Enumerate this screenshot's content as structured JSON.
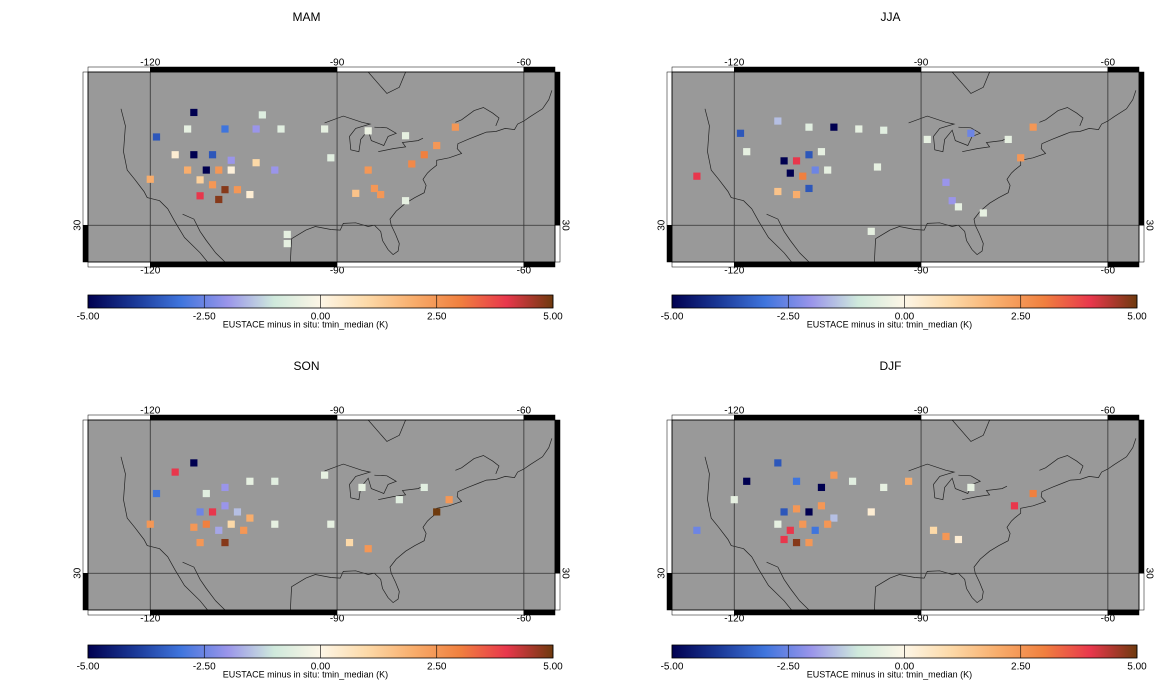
{
  "chart_data": [
    {
      "type": "map",
      "title": "MAM",
      "xlim": [
        -130,
        -55
      ],
      "ylim": [
        24,
        55
      ],
      "xticks": [
        -120,
        -90,
        -60
      ],
      "yticks": [
        30
      ],
      "x": [
        -113,
        -119,
        -114,
        -116,
        -108,
        -102,
        -103,
        -99,
        -92,
        -85,
        -79,
        -71,
        -74,
        -76,
        -78,
        -113,
        -110,
        -107,
        -114,
        -111,
        -109,
        -107,
        -112,
        -110,
        -108,
        -106,
        -104,
        -112,
        -109,
        -103,
        -100,
        -120,
        -98,
        -91,
        -85,
        -84,
        -87,
        -83,
        -98,
        -79
      ],
      "y": [
        48.4,
        44.4,
        45.7,
        41.5,
        45.7,
        48,
        45.7,
        45.7,
        45.7,
        45.4,
        44.6,
        46,
        43,
        41.5,
        40,
        41.5,
        41.5,
        40.6,
        39,
        39,
        39,
        39,
        37.4,
        36.6,
        35.8,
        35.8,
        35,
        34.8,
        34.2,
        40.2,
        39,
        37.5,
        27,
        41,
        39,
        36,
        35.2,
        35,
        28.5,
        34
      ],
      "values": [
        -5,
        -3.5,
        -0.5,
        0.3,
        -3,
        -0.7,
        -2,
        -0.6,
        -0.5,
        -0.4,
        -0.5,
        2.5,
        2.5,
        3,
        2.8,
        -5,
        -3.5,
        -2,
        2,
        -5,
        2.5,
        0.2,
        1.2,
        2.5,
        4.8,
        2.5,
        0.3,
        4,
        4.8,
        1,
        -2,
        2,
        -0.5,
        -0.6,
        2.5,
        2.5,
        1.5,
        2.5,
        -0.5,
        -0.5
      ],
      "colorbar": {
        "label": "EUSTACE minus in situ: tmin_median (K)",
        "lim": [
          -5,
          5
        ],
        "ticks": [
          {
            "value": -5,
            "label": "-5.00"
          },
          {
            "value": -2.5,
            "label": "-2.50"
          },
          {
            "value": 0,
            "label": "0.00"
          },
          {
            "value": 2.5,
            "label": "2.50"
          },
          {
            "value": 5,
            "label": "5.00"
          }
        ],
        "colors": [
          "#000050",
          "#1a3896",
          "#3f75dd",
          "#9a95ea",
          "#cfe9dc",
          "#fdf6e6",
          "#fcd9a8",
          "#f8ad6c",
          "#f0803f",
          "#e8374c",
          "#6e3a0e"
        ]
      }
    },
    {
      "type": "map",
      "title": "JJA",
      "xlim": [
        -130,
        -55
      ],
      "ylim": [
        24,
        55
      ],
      "xticks": [
        -120,
        -90,
        -60
      ],
      "yticks": [
        30
      ],
      "x": [
        -113,
        -119,
        -118,
        -108,
        -104,
        -100,
        -96,
        -89,
        -82,
        -76,
        -72,
        -74,
        -112,
        -110,
        -108,
        -106,
        -111,
        -109,
        -107,
        -105,
        -113,
        -110,
        -108,
        -126,
        -97,
        -86,
        -85,
        -84,
        -80,
        -98
      ],
      "y": [
        47,
        45,
        42,
        46,
        46,
        45.7,
        45.5,
        44,
        45,
        44,
        46,
        41,
        40.5,
        40.5,
        41.5,
        42,
        38.5,
        38,
        39,
        39,
        35.5,
        35,
        36,
        38,
        39.5,
        37,
        34,
        33,
        32,
        29
      ],
      "values": [
        -1.5,
        -3.5,
        -0.5,
        -0.6,
        -5,
        -0.5,
        -0.6,
        -0.5,
        -2.5,
        -0.5,
        2.5,
        2.5,
        -5,
        4,
        -3.5,
        -0.5,
        -5,
        3,
        -2.5,
        -0.5,
        1.5,
        2,
        -3.5,
        4,
        -0.5,
        -2,
        -2,
        -0.5,
        -0.5,
        -0.5
      ],
      "colorbar": {
        "label": "EUSTACE minus in situ: tmin_median (K)",
        "lim": [
          -5,
          5
        ],
        "ticks": [
          {
            "value": -5,
            "label": "-5.00"
          },
          {
            "value": -2.5,
            "label": "-2.50"
          },
          {
            "value": 0,
            "label": "0.00"
          },
          {
            "value": 2.5,
            "label": "2.50"
          },
          {
            "value": 5,
            "label": "5.00"
          }
        ],
        "colors": [
          "#000050",
          "#1a3896",
          "#3f75dd",
          "#9a95ea",
          "#cfe9dc",
          "#fdf6e6",
          "#fcd9a8",
          "#f8ad6c",
          "#f0803f",
          "#e8374c",
          "#6e3a0e"
        ]
      }
    },
    {
      "type": "map",
      "title": "SON",
      "xlim": [
        -130,
        -55
      ],
      "ylim": [
        24,
        55
      ],
      "xticks": [
        -120,
        -90,
        -60
      ],
      "yticks": [
        30
      ],
      "x": [
        -113,
        -116,
        -119,
        -111,
        -108,
        -104,
        -100,
        -92,
        -86,
        -80,
        -74,
        -72,
        -76,
        -112,
        -110,
        -108,
        -106,
        -104,
        -113,
        -111,
        -109,
        -107,
        -105,
        -112,
        -108,
        -120,
        -100,
        -91,
        -88,
        -85
      ],
      "y": [
        48,
        46.5,
        43,
        43,
        44,
        45,
        45,
        46,
        44,
        42,
        40,
        42,
        44,
        40,
        40,
        41,
        40,
        39,
        37.5,
        38,
        37,
        38,
        37,
        35,
        35,
        38,
        38,
        38,
        35,
        34
      ],
      "values": [
        -5,
        4,
        -3,
        -0.6,
        -2,
        -0.5,
        -0.6,
        -0.5,
        -0.5,
        -0.6,
        5,
        2.5,
        -0.6,
        -2.5,
        4,
        -2,
        -1.5,
        2,
        2.5,
        3,
        -1.8,
        1,
        2.5,
        2.5,
        4.8,
        2.5,
        -0.5,
        -0.5,
        1,
        2.5
      ],
      "colorbar": {
        "label": "EUSTACE minus in situ: tmin_median (K)",
        "lim": [
          -5,
          5
        ],
        "ticks": [
          {
            "value": -5,
            "label": "-5.00"
          },
          {
            "value": -2.5,
            "label": "-2.50"
          },
          {
            "value": 0,
            "label": "0.00"
          },
          {
            "value": 2.5,
            "label": "2.50"
          },
          {
            "value": 5,
            "label": "5.00"
          }
        ],
        "colors": [
          "#000050",
          "#1a3896",
          "#3f75dd",
          "#9a95ea",
          "#cfe9dc",
          "#fdf6e6",
          "#fcd9a8",
          "#f8ad6c",
          "#f0803f",
          "#e8374c",
          "#6e3a0e"
        ]
      }
    },
    {
      "type": "map",
      "title": "DJF",
      "xlim": [
        -130,
        -55
      ],
      "ylim": [
        24,
        55
      ],
      "xticks": [
        -120,
        -90,
        -60
      ],
      "yticks": [
        30
      ],
      "x": [
        -113,
        -118,
        -120,
        -110,
        -106,
        -104,
        -101,
        -96,
        -92,
        -82,
        -75,
        -72,
        -112,
        -110,
        -108,
        -106,
        -104,
        -113,
        -111,
        -109,
        -107,
        -105,
        -112,
        -110,
        -108,
        -88,
        -86,
        -84,
        -126,
        -98
      ],
      "y": [
        48,
        45,
        42,
        45,
        44,
        46,
        45,
        44,
        45,
        44,
        41,
        43,
        40,
        40.5,
        40,
        41,
        39,
        38,
        37,
        38,
        37,
        38,
        35.5,
        35,
        35,
        37,
        36,
        35.5,
        37,
        40
      ],
      "values": [
        -3.5,
        -5,
        -0.5,
        -3,
        -5,
        2.5,
        -0.6,
        -0.5,
        2,
        -0.5,
        4,
        3,
        -3.5,
        2.5,
        -5,
        2.5,
        -1.5,
        -0.5,
        4,
        2.5,
        -3,
        2.5,
        4,
        4.8,
        2.5,
        1,
        2.5,
        0.3,
        -2.5,
        0.3
      ],
      "colorbar": {
        "label": "EUSTACE minus in situ: tmin_median (K)",
        "lim": [
          -5,
          5
        ],
        "ticks": [
          {
            "value": -5,
            "label": "-5.00"
          },
          {
            "value": -2.5,
            "label": "-2.50"
          },
          {
            "value": 0,
            "label": "0.00"
          },
          {
            "value": 2.5,
            "label": "2.50"
          },
          {
            "value": 5,
            "label": "5.00"
          }
        ],
        "colors": [
          "#000050",
          "#1a3896",
          "#3f75dd",
          "#9a95ea",
          "#cfe9dc",
          "#fdf6e6",
          "#fcd9a8",
          "#f8ad6c",
          "#f0803f",
          "#e8374c",
          "#6e3a0e"
        ]
      }
    }
  ]
}
